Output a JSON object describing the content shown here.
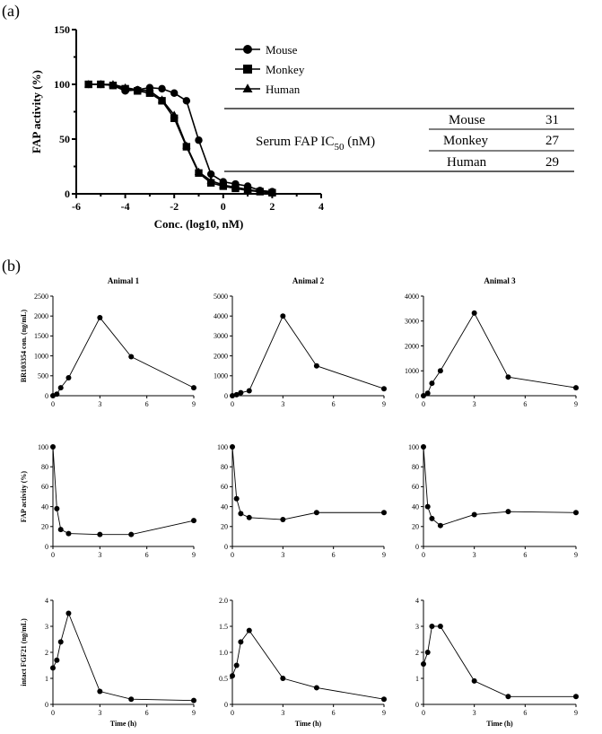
{
  "panel_labels": {
    "a": "(a)",
    "b": "(b)"
  },
  "ic50_table": {
    "label_main": "Serum FAP IC",
    "label_sub": "50",
    "label_unit": "(nM)",
    "rows": [
      {
        "species": "Mouse",
        "value": "31"
      },
      {
        "species": "Monkey",
        "value": "27"
      },
      {
        "species": "Human",
        "value": "29"
      }
    ]
  },
  "chart_data": [
    {
      "id": "a",
      "type": "line",
      "title": "",
      "xlabel": "Conc. (log10, nM)",
      "ylabel": "FAP activity  (%)",
      "xlim": [
        -6,
        4
      ],
      "ylim": [
        0,
        150
      ],
      "xticks": [
        "-6",
        "-4",
        "-2",
        "0",
        "2",
        "4"
      ],
      "xtick_values": [
        -6,
        -4,
        -2,
        0,
        2,
        4
      ],
      "yticks": [
        "0",
        "50",
        "100",
        "150"
      ],
      "ytick_values": [
        0,
        50,
        100,
        150
      ],
      "legend": [
        "Mouse",
        "Monkey",
        "Human"
      ],
      "series": [
        {
          "name": "Mouse",
          "marker": "circle",
          "x": [
            -5.5,
            -5.0,
            -4.5,
            -4.0,
            -3.5,
            -3.0,
            -2.5,
            -2.0,
            -1.5,
            -1.0,
            -0.5,
            0.0,
            0.5,
            1.0,
            1.5,
            2.0
          ],
          "y": [
            100,
            100,
            99,
            94,
            95,
            97,
            96,
            92,
            85,
            49,
            18,
            11,
            9,
            7,
            3,
            2
          ]
        },
        {
          "name": "Monkey",
          "marker": "square",
          "x": [
            -5.5,
            -5.0,
            -4.5,
            -4.0,
            -3.5,
            -3.0,
            -2.5,
            -2.0,
            -1.5,
            -1.0,
            -0.5,
            0.0,
            0.5,
            1.0,
            1.5,
            2.0
          ],
          "y": [
            100,
            100,
            99,
            96,
            94,
            92,
            85,
            69,
            43,
            19,
            10,
            7,
            5,
            3,
            2,
            1
          ]
        },
        {
          "name": "Human",
          "marker": "triangle",
          "x": [
            -5.5,
            -5.0,
            -4.5,
            -4.0,
            -3.5,
            -3.0,
            -2.5,
            -2.0,
            -1.5,
            -1.0,
            -0.5,
            0.0,
            0.5,
            1.0,
            1.5,
            2.0
          ],
          "y": [
            100,
            100,
            100,
            97,
            95,
            94,
            86,
            72,
            44,
            20,
            12,
            8,
            6,
            4,
            2,
            1
          ]
        }
      ]
    },
    {
      "id": "b-a1-conc",
      "type": "line",
      "title": "Animal 1",
      "ylabel": "BR103354 con. (ng/mL)",
      "xlabel": "",
      "xlim": [
        0,
        9
      ],
      "ylim": [
        0,
        2500
      ],
      "xticks": [
        "0",
        "3",
        "6",
        "9"
      ],
      "xtick_values": [
        0,
        3,
        6,
        9
      ],
      "yticks": [
        "0",
        "500",
        "1000",
        "1500",
        "2000",
        "2500"
      ],
      "ytick_values": [
        0,
        500,
        1000,
        1500,
        2000,
        2500
      ],
      "x": [
        0,
        0.25,
        0.5,
        1,
        3,
        5,
        9
      ],
      "y": [
        0,
        40,
        200,
        450,
        1960,
        980,
        200
      ]
    },
    {
      "id": "b-a2-conc",
      "type": "line",
      "title": "Animal 2",
      "ylabel": "",
      "xlabel": "",
      "xlim": [
        0,
        9
      ],
      "ylim": [
        0,
        5000
      ],
      "xticks": [
        "0",
        "3",
        "6",
        "9"
      ],
      "xtick_values": [
        0,
        3,
        6,
        9
      ],
      "yticks": [
        "0",
        "1000",
        "2000",
        "3000",
        "4000",
        "5000"
      ],
      "ytick_values": [
        0,
        1000,
        2000,
        3000,
        4000,
        5000
      ],
      "x": [
        0,
        0.25,
        0.5,
        1,
        3,
        5,
        9
      ],
      "y": [
        0,
        50,
        150,
        250,
        4000,
        1500,
        350
      ]
    },
    {
      "id": "b-a3-conc",
      "type": "line",
      "title": "Animal 3",
      "ylabel": "",
      "xlabel": "",
      "xlim": [
        0,
        9
      ],
      "ylim": [
        0,
        4000
      ],
      "xticks": [
        "0",
        "3",
        "6",
        "9"
      ],
      "xtick_values": [
        0,
        3,
        6,
        9
      ],
      "yticks": [
        "0",
        "1000",
        "2000",
        "3000",
        "4000"
      ],
      "ytick_values": [
        0,
        1000,
        2000,
        3000,
        4000
      ],
      "x": [
        0,
        0.25,
        0.5,
        1,
        3,
        5,
        9
      ],
      "y": [
        0,
        100,
        500,
        1000,
        3320,
        750,
        320
      ]
    },
    {
      "id": "b-a1-fap",
      "type": "line",
      "title": "",
      "ylabel": "FAP activity (%)",
      "xlabel": "",
      "xlim": [
        0,
        9
      ],
      "ylim": [
        0,
        100
      ],
      "xticks": [
        "0",
        "3",
        "6",
        "9"
      ],
      "xtick_values": [
        0,
        3,
        6,
        9
      ],
      "yticks": [
        "0",
        "20",
        "40",
        "60",
        "80",
        "100"
      ],
      "ytick_values": [
        0,
        20,
        40,
        60,
        80,
        100
      ],
      "x": [
        0,
        0.25,
        0.5,
        1,
        3,
        5,
        9
      ],
      "y": [
        100,
        38,
        17,
        13,
        12,
        12,
        26
      ]
    },
    {
      "id": "b-a2-fap",
      "type": "line",
      "title": "",
      "ylabel": "",
      "xlabel": "",
      "xlim": [
        0,
        9
      ],
      "ylim": [
        0,
        100
      ],
      "xticks": [
        "0",
        "3",
        "6",
        "9"
      ],
      "xtick_values": [
        0,
        3,
        6,
        9
      ],
      "yticks": [
        "0",
        "20",
        "40",
        "60",
        "80",
        "100"
      ],
      "ytick_values": [
        0,
        20,
        40,
        60,
        80,
        100
      ],
      "x": [
        0,
        0.25,
        0.5,
        1,
        3,
        5,
        9
      ],
      "y": [
        100,
        48,
        33,
        29,
        27,
        34,
        34
      ]
    },
    {
      "id": "b-a3-fap",
      "type": "line",
      "title": "",
      "ylabel": "",
      "xlabel": "",
      "xlim": [
        0,
        9
      ],
      "ylim": [
        0,
        100
      ],
      "xticks": [
        "0",
        "3",
        "6",
        "9"
      ],
      "xtick_values": [
        0,
        3,
        6,
        9
      ],
      "yticks": [
        "0",
        "20",
        "40",
        "60",
        "80",
        "100"
      ],
      "ytick_values": [
        0,
        20,
        40,
        60,
        80,
        100
      ],
      "x": [
        0,
        0.25,
        0.5,
        1,
        3,
        5,
        9
      ],
      "y": [
        100,
        40,
        28,
        21,
        32,
        35,
        34
      ]
    },
    {
      "id": "b-a1-fgf",
      "type": "line",
      "title": "",
      "ylabel": "intact FGF21 (ng/mL)",
      "xlabel": "Time (h)",
      "xlim": [
        0,
        9
      ],
      "ylim": [
        0,
        4
      ],
      "xticks": [
        "0",
        "3",
        "6",
        "9"
      ],
      "xtick_values": [
        0,
        3,
        6,
        9
      ],
      "yticks": [
        "0",
        "1",
        "2",
        "3",
        "4"
      ],
      "ytick_values": [
        0,
        1,
        2,
        3,
        4
      ],
      "x": [
        0,
        0.25,
        0.5,
        1,
        3,
        5,
        9
      ],
      "y": [
        1.4,
        1.7,
        2.4,
        3.5,
        0.5,
        0.2,
        0.15
      ]
    },
    {
      "id": "b-a2-fgf",
      "type": "line",
      "title": "",
      "ylabel": "",
      "xlabel": "Time (h)",
      "xlim": [
        0,
        9
      ],
      "ylim": [
        0,
        2.0
      ],
      "xticks": [
        "0",
        "3",
        "6",
        "9"
      ],
      "xtick_values": [
        0,
        3,
        6,
        9
      ],
      "yticks": [
        "0",
        "0.5",
        "1.0",
        "1.5",
        "2.0"
      ],
      "ytick_values": [
        0,
        0.5,
        1.0,
        1.5,
        2.0
      ],
      "x": [
        0,
        0.25,
        0.5,
        1,
        3,
        5,
        9
      ],
      "y": [
        0.55,
        0.75,
        1.2,
        1.42,
        0.5,
        0.32,
        0.1
      ]
    },
    {
      "id": "b-a3-fgf",
      "type": "line",
      "title": "",
      "ylabel": "",
      "xlabel": "Time (h)",
      "xlim": [
        0,
        9
      ],
      "ylim": [
        0,
        4
      ],
      "xticks": [
        "0",
        "3",
        "6",
        "9"
      ],
      "xtick_values": [
        0,
        3,
        6,
        9
      ],
      "yticks": [
        "0",
        "1",
        "2",
        "3",
        "4"
      ],
      "ytick_values": [
        0,
        1,
        2,
        3,
        4
      ],
      "x": [
        0,
        0.25,
        0.5,
        1,
        3,
        5,
        9
      ],
      "y": [
        1.55,
        2.0,
        3.0,
        3.0,
        0.9,
        0.3,
        0.3
      ]
    }
  ]
}
